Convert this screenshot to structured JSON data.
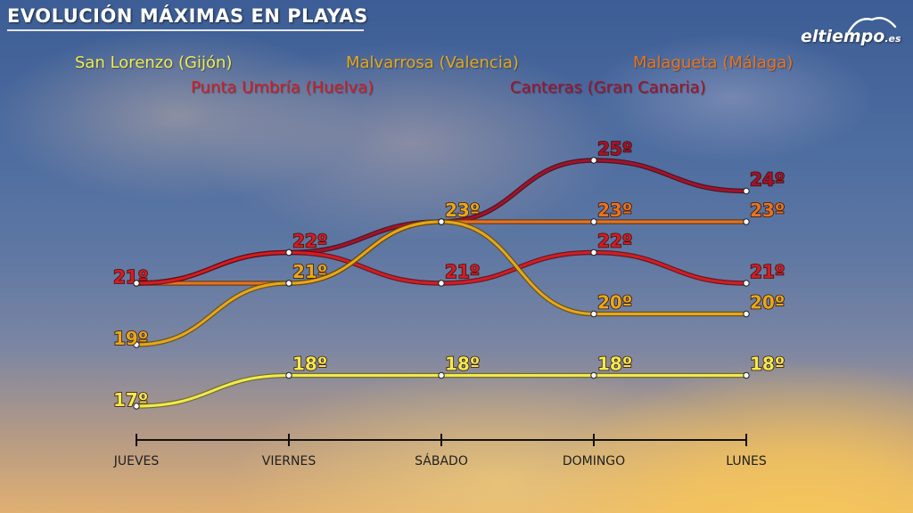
{
  "title": "EVOLUCIÓN MÁXIMAS EN PLAYAS",
  "logo": {
    "brand": "eltiempo",
    "tld": ".es"
  },
  "legend_order": [
    "san_lorenzo",
    "punta_umbria",
    "malvarrosa",
    "canteras",
    "malagueta"
  ],
  "chart_data": {
    "type": "line",
    "title": "EVOLUCIÓN MÁXIMAS EN PLAYAS",
    "xlabel": "",
    "ylabel": "",
    "categories": [
      "JUEVES",
      "VIERNES",
      "SÁBADO",
      "DOMINGO",
      "LUNES"
    ],
    "ylim": [
      16,
      26
    ],
    "unit": "º",
    "grid": false,
    "legend_position": "top",
    "series": [
      {
        "key": "canteras",
        "name": "Canteras (Gran Canaria)",
        "color": "#a3122a",
        "values": [
          21,
          22,
          23,
          25,
          24
        ]
      },
      {
        "key": "malagueta",
        "name": "Malagueta (Málaga)",
        "color": "#e8741c",
        "values": [
          21,
          21,
          23,
          23,
          23
        ]
      },
      {
        "key": "punta_umbria",
        "name": "Punta Umbría (Huelva)",
        "color": "#d41c24",
        "values": [
          21,
          22,
          21,
          22,
          21
        ]
      },
      {
        "key": "malvarrosa",
        "name": "Malvarrosa (Valencia)",
        "color": "#e6a81a",
        "values": [
          19,
          21,
          23,
          20,
          20
        ]
      },
      {
        "key": "san_lorenzo",
        "name": "San Lorenzo (Gijón)",
        "color": "#f1ea4e",
        "values": [
          17,
          18,
          18,
          18,
          18
        ]
      }
    ]
  }
}
